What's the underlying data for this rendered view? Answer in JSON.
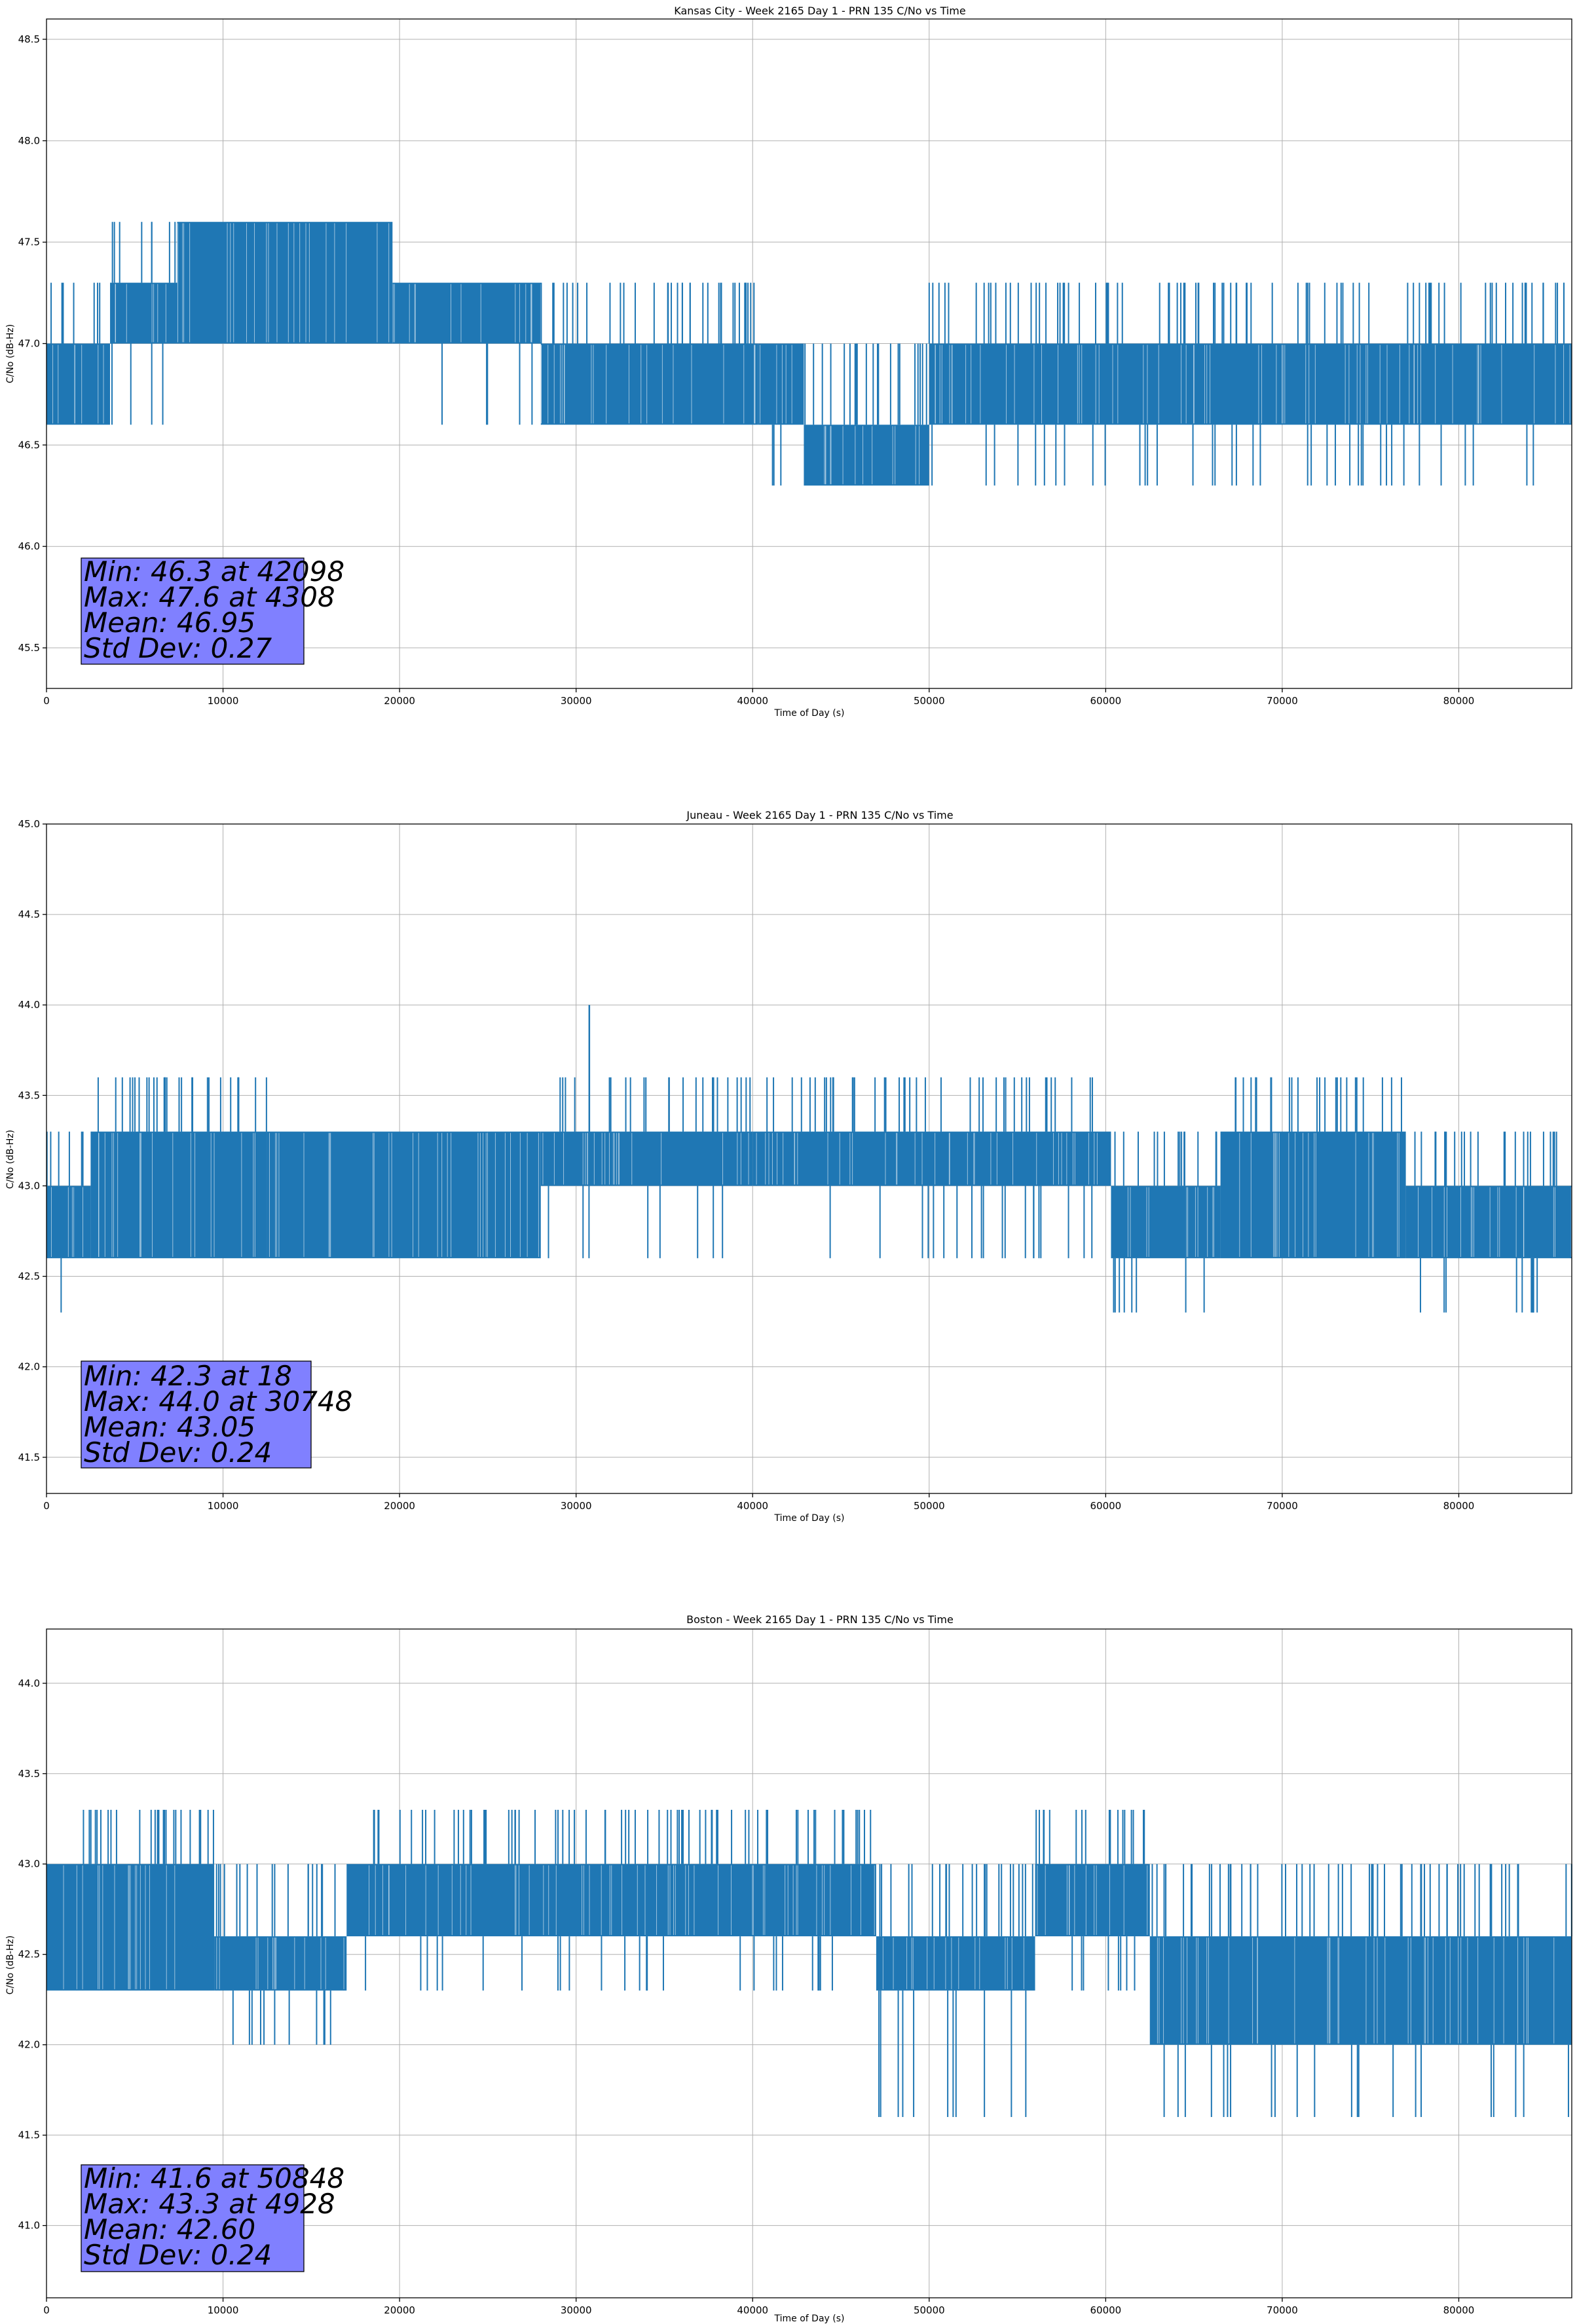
{
  "colors": {
    "series": "#1f77b4",
    "stats_box": "#8080ff",
    "grid": "#b0b0b0"
  },
  "chart_data": [
    {
      "type": "line",
      "title": "Kansas City - Week 2165 Day 1 - PRN 135 C/No vs Time",
      "xlabel": "Time of Day (s)",
      "ylabel": "C/No (dB-Hz)",
      "xlim": [
        0,
        86400
      ],
      "ylim": [
        45.3,
        48.6
      ],
      "xticks": [
        0,
        10000,
        20000,
        30000,
        40000,
        50000,
        60000,
        70000,
        80000
      ],
      "xtick_labels": [
        "0",
        "10000",
        "20000",
        "30000",
        "40000",
        "50000",
        "60000",
        "70000",
        "80000"
      ],
      "yticks": [
        45.5,
        46.0,
        46.5,
        47.0,
        47.5,
        48.0,
        48.5
      ],
      "ytick_labels": [
        "45.5",
        "46.0",
        "46.5",
        "47.0",
        "47.5",
        "48.0",
        "48.5"
      ],
      "grid": true,
      "series": [
        {
          "segments": [
            {
              "x": [
                0,
                3600
              ],
              "band": [
                46.6,
                47.0
              ],
              "up": 47.3,
              "down": 46.6
            },
            {
              "x": [
                3600,
                7400
              ],
              "band": [
                47.0,
                47.3
              ],
              "up": 47.6,
              "down": 46.6
            },
            {
              "x": [
                7400,
                19600
              ],
              "band": [
                47.0,
                47.6
              ],
              "up": 47.6,
              "down": 47.0
            },
            {
              "x": [
                19600,
                28000
              ],
              "band": [
                47.0,
                47.3
              ],
              "up": 47.3,
              "down": 46.6
            },
            {
              "x": [
                28000,
                40300
              ],
              "band": [
                46.6,
                47.0
              ],
              "up": 47.3,
              "down": 46.6
            },
            {
              "x": [
                40300,
                42900
              ],
              "band": [
                46.6,
                47.0
              ],
              "up": 47.0,
              "down": 46.3
            },
            {
              "x": [
                42900,
                50000
              ],
              "band": [
                46.3,
                46.6
              ],
              "up": 47.0,
              "down": 46.3
            },
            {
              "x": [
                50000,
                86400
              ],
              "band": [
                46.6,
                47.0
              ],
              "up": 47.3,
              "down": 46.3
            }
          ]
        }
      ],
      "stats": {
        "lines": [
          "Min: 46.3 at 42098",
          "Max: 47.6 at 4308",
          "Mean: 46.95",
          "Std Dev: 0.27"
        ]
      }
    },
    {
      "type": "line",
      "title": "Juneau - Week 2165 Day 1 - PRN 135 C/No vs Time",
      "xlabel": "Time of Day (s)",
      "ylabel": "C/No (dB-Hz)",
      "xlim": [
        0,
        86400
      ],
      "ylim": [
        41.3,
        45.0
      ],
      "xticks": [
        0,
        10000,
        20000,
        30000,
        40000,
        50000,
        60000,
        70000,
        80000
      ],
      "xtick_labels": [
        "0",
        "10000",
        "20000",
        "30000",
        "40000",
        "50000",
        "60000",
        "70000",
        "80000"
      ],
      "yticks": [
        41.5,
        42.0,
        42.5,
        43.0,
        43.5,
        44.0,
        44.5,
        45.0
      ],
      "ytick_labels": [
        "41.5",
        "42.0",
        "42.5",
        "43.0",
        "43.5",
        "44.0",
        "44.5",
        "45.0"
      ],
      "grid": true,
      "series": [
        {
          "segments": [
            {
              "x": [
                0,
                2500
              ],
              "band": [
                42.6,
                43.0
              ],
              "up": 43.3,
              "down": 42.3
            },
            {
              "x": [
                2500,
                12500
              ],
              "band": [
                42.6,
                43.3
              ],
              "up": 43.6,
              "down": 42.6
            },
            {
              "x": [
                12500,
                25000
              ],
              "band": [
                42.6,
                43.3
              ],
              "up": 43.3,
              "down": 42.6
            },
            {
              "x": [
                25000,
                28000
              ],
              "band": [
                42.6,
                43.3
              ],
              "up": 43.3,
              "down": 42.6
            },
            {
              "x": [
                28000,
                40000
              ],
              "band": [
                43.0,
                43.3
              ],
              "up": 43.6,
              "down": 42.6
            },
            {
              "x": [
                40000,
                60300
              ],
              "band": [
                43.0,
                43.3
              ],
              "up": 43.6,
              "down": 42.6
            },
            {
              "x": [
                60300,
                66500
              ],
              "band": [
                42.6,
                43.0
              ],
              "up": 43.3,
              "down": 42.3
            },
            {
              "x": [
                66500,
                77000
              ],
              "band": [
                42.6,
                43.3
              ],
              "up": 43.6,
              "down": 42.6
            },
            {
              "x": [
                77000,
                86400
              ],
              "band": [
                42.6,
                43.0
              ],
              "up": 43.3,
              "down": 42.3
            }
          ],
          "peaks": [
            {
              "x": 30748,
              "y": 44.0
            }
          ]
        }
      ],
      "stats": {
        "lines": [
          "Min: 42.3 at 18",
          "Max: 44.0 at 30748",
          "Mean: 43.05",
          "Std Dev: 0.24"
        ]
      }
    },
    {
      "type": "line",
      "title": "Boston - Week 2165 Day 1 - PRN 135 C/No vs Time",
      "xlabel": "Time of Day (s)",
      "ylabel": "C/No (dB-Hz)",
      "xlim": [
        0,
        86400
      ],
      "ylim": [
        40.6,
        44.3
      ],
      "xticks": [
        0,
        10000,
        20000,
        30000,
        40000,
        50000,
        60000,
        70000,
        80000
      ],
      "xtick_labels": [
        "0",
        "10000",
        "20000",
        "30000",
        "40000",
        "50000",
        "60000",
        "70000",
        "80000"
      ],
      "yticks": [
        41.0,
        41.5,
        42.0,
        42.5,
        43.0,
        43.5,
        44.0
      ],
      "ytick_labels": [
        "41.0",
        "41.5",
        "42.0",
        "42.5",
        "43.0",
        "43.5",
        "44.0"
      ],
      "grid": true,
      "series": [
        {
          "segments": [
            {
              "x": [
                0,
                9500
              ],
              "band": [
                42.3,
                43.0
              ],
              "up": 43.3,
              "down": 42.3
            },
            {
              "x": [
                9500,
                17000
              ],
              "band": [
                42.3,
                42.6
              ],
              "up": 43.0,
              "down": 42.0
            },
            {
              "x": [
                17000,
                47000
              ],
              "band": [
                42.6,
                43.0
              ],
              "up": 43.3,
              "down": 42.3
            },
            {
              "x": [
                47000,
                56000
              ],
              "band": [
                42.3,
                42.6
              ],
              "up": 43.0,
              "down": 41.6
            },
            {
              "x": [
                56000,
                62500
              ],
              "band": [
                42.6,
                43.0
              ],
              "up": 43.3,
              "down": 42.3
            },
            {
              "x": [
                62500,
                86400
              ],
              "band": [
                42.0,
                42.6
              ],
              "up": 43.0,
              "down": 41.6
            }
          ]
        }
      ],
      "stats": {
        "lines": [
          "Min: 41.6 at 50848",
          "Max: 43.3 at 4928",
          "Mean: 42.60",
          "Std Dev: 0.24"
        ]
      }
    }
  ]
}
